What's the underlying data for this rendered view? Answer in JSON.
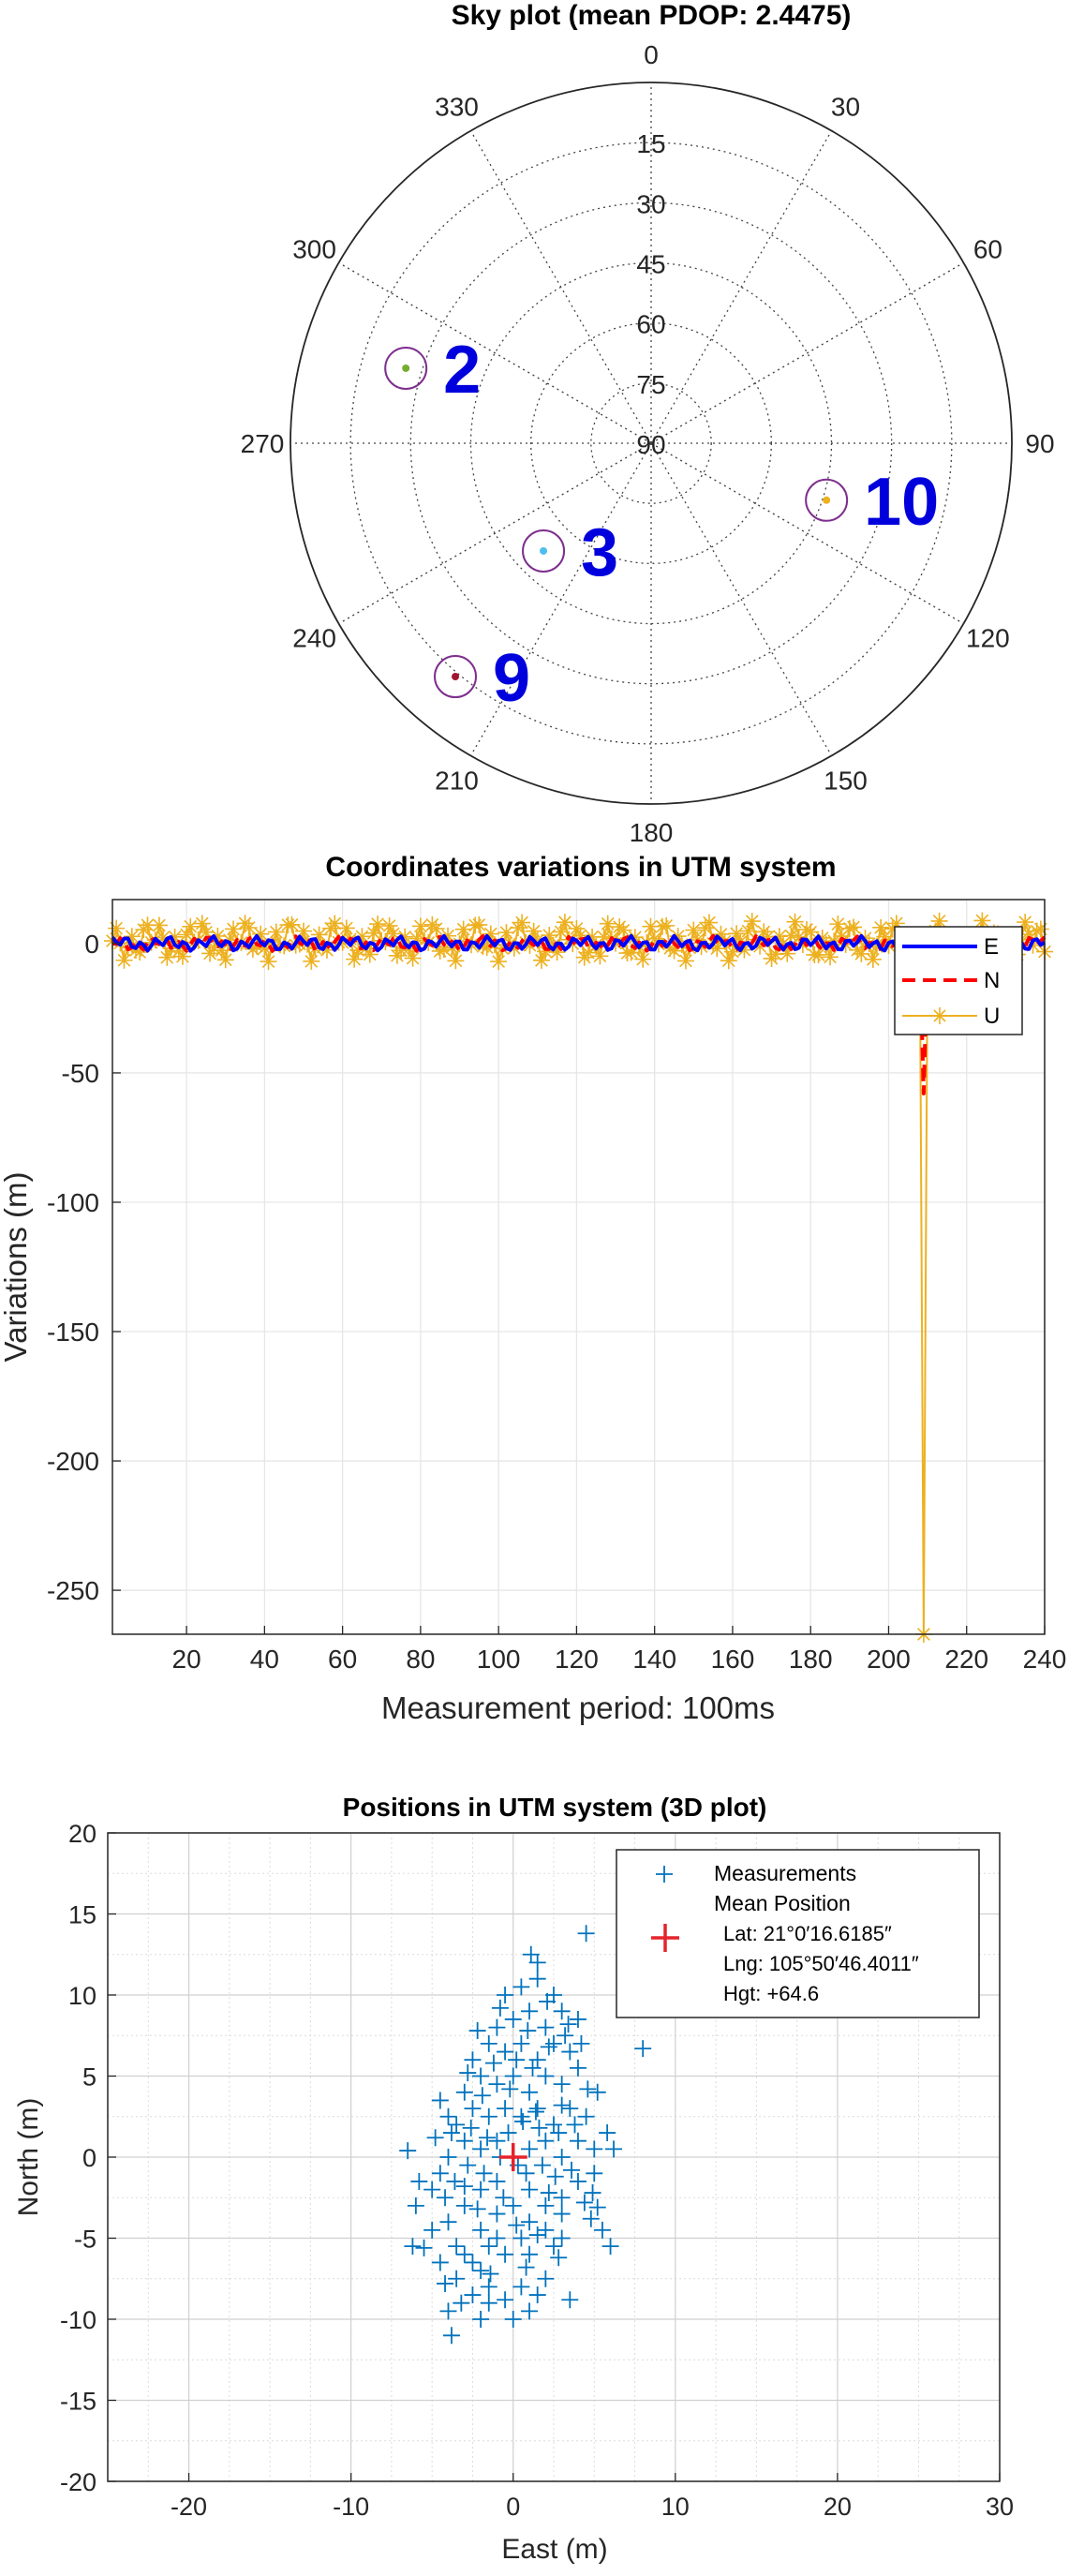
{
  "colors": {
    "E": "#0000ff",
    "N": "#ff0000",
    "U": "#edb120",
    "measurement": "#0072bd",
    "mean": "#e5232c",
    "sat_circle": "#7e2f8e",
    "sat_label": "#0000dd"
  },
  "chart_data": [
    {
      "type": "polar-scatter",
      "title": "Sky plot (mean PDOP: 2.4475)",
      "azimuth_labels": [
        "0",
        "30",
        "60",
        "90",
        "120",
        "150",
        "180",
        "210",
        "240",
        "270",
        "300",
        "330"
      ],
      "elevation_labels": [
        "15",
        "30",
        "45",
        "60",
        "75",
        "90"
      ],
      "satellites": [
        {
          "prn": "2",
          "azimuth": 287,
          "elevation": 26,
          "color": "#77ac30"
        },
        {
          "prn": "3",
          "azimuth": 225,
          "elevation": 52,
          "color": "#4dbeee"
        },
        {
          "prn": "9",
          "azimuth": 220,
          "elevation": 14,
          "color": "#a2142f"
        },
        {
          "prn": "10",
          "azimuth": 108,
          "elevation": 44,
          "color": "#edb120"
        }
      ]
    },
    {
      "type": "line",
      "title": "Coordinates variations in UTM system",
      "xlabel": "Measurement period: 100ms",
      "ylabel": "Variations (m)",
      "xlim": [
        1,
        240
      ],
      "ylim": [
        -267,
        17
      ],
      "xticks": [
        "20",
        "40",
        "60",
        "80",
        "100",
        "120",
        "140",
        "160",
        "180",
        "200",
        "220",
        "240"
      ],
      "yticks": [
        "0",
        "-50",
        "-100",
        "-150",
        "-200",
        "-250"
      ],
      "grid": true,
      "legend_position": "top-right",
      "series": [
        {
          "name": "E",
          "style": "solid",
          "amplitude": 3,
          "spike": {
            "x": 209,
            "y": -20
          }
        },
        {
          "name": "N",
          "style": "dashed",
          "amplitude": 3,
          "spike": {
            "x": 209,
            "y": -58
          }
        },
        {
          "name": "U",
          "style": "star-markers",
          "amplitude": 8,
          "spike": {
            "x": 209,
            "y": -267
          }
        }
      ]
    },
    {
      "type": "scatter",
      "title": "Positions in UTM system (3D plot)",
      "xlabel": "East (m)",
      "ylabel": "North (m)",
      "xlim": [
        -25,
        30
      ],
      "ylim": [
        -20,
        20
      ],
      "xticks": [
        "-20",
        "-10",
        "0",
        "10",
        "20",
        "30"
      ],
      "yticks": [
        "20",
        "15",
        "10",
        "5",
        "0",
        "-5",
        "-10",
        "-15",
        "-20"
      ],
      "grid": true,
      "legend_position": "top-right",
      "legend": {
        "measurements": "Measurements",
        "mean": "Mean Position",
        "lat": "Lat: 21°0′16.6185″",
        "lng": "Lng: 105°50′46.4011″",
        "hgt": "Hgt: +64.6"
      },
      "mean_position": {
        "x": 0,
        "y": 0
      },
      "measurement_points": [
        [
          4.5,
          13.8
        ],
        [
          8,
          6.7
        ],
        [
          1.5,
          12
        ],
        [
          -6.5,
          0.4
        ],
        [
          -6,
          -3
        ],
        [
          -5.5,
          -5.6
        ],
        [
          -4,
          -9.5
        ],
        [
          -3.8,
          -11
        ],
        [
          3.5,
          -8.8
        ],
        [
          5.5,
          -4.5
        ],
        [
          6,
          -5.5
        ],
        [
          0,
          -10
        ],
        [
          -1.5,
          -8
        ],
        [
          4.8,
          -3.8
        ],
        [
          -3,
          -6
        ],
        [
          -2,
          -7
        ],
        [
          -1,
          -5
        ],
        [
          1,
          -6
        ],
        [
          2,
          -7.5
        ],
        [
          3,
          -5
        ],
        [
          -4,
          -4
        ],
        [
          -3,
          -3
        ],
        [
          -2,
          -2
        ],
        [
          -1,
          -1.5
        ],
        [
          1,
          -2
        ],
        [
          2,
          -3
        ],
        [
          3,
          -2.5
        ],
        [
          4,
          -1.5
        ],
        [
          5,
          -1
        ],
        [
          -5,
          -2
        ],
        [
          -4.5,
          -1
        ],
        [
          -4,
          0
        ],
        [
          -3,
          1
        ],
        [
          -2,
          0.5
        ],
        [
          -1,
          1
        ],
        [
          1,
          0.5
        ],
        [
          2,
          1
        ],
        [
          3,
          0
        ],
        [
          4,
          1
        ],
        [
          5,
          0.5
        ],
        [
          -3.5,
          2
        ],
        [
          -2.5,
          3
        ],
        [
          -1.5,
          2.5
        ],
        [
          -0.5,
          3
        ],
        [
          0.5,
          2.5
        ],
        [
          1.5,
          3
        ],
        [
          2.5,
          2
        ],
        [
          3.5,
          3
        ],
        [
          4.5,
          2.5
        ],
        [
          -3,
          4
        ],
        [
          -2,
          5
        ],
        [
          -1,
          4.5
        ],
        [
          0,
          5
        ],
        [
          1,
          4
        ],
        [
          2,
          5
        ],
        [
          3,
          4.5
        ],
        [
          4,
          5.5
        ],
        [
          -2.5,
          6
        ],
        [
          -1.5,
          7
        ],
        [
          -0.5,
          6.5
        ],
        [
          0.5,
          7
        ],
        [
          1.5,
          6
        ],
        [
          2.5,
          7
        ],
        [
          3.5,
          6.5
        ],
        [
          -1,
          8
        ],
        [
          0,
          8.5
        ],
        [
          1,
          9
        ],
        [
          2,
          8
        ],
        [
          3,
          9
        ],
        [
          4,
          8.5
        ],
        [
          -0.5,
          10
        ],
        [
          0.5,
          10.5
        ],
        [
          1.5,
          11
        ],
        [
          2.5,
          10
        ],
        [
          -2,
          -4.5
        ],
        [
          -1,
          -3.5
        ],
        [
          0,
          -3
        ],
        [
          1,
          -4
        ],
        [
          2,
          -4.5
        ],
        [
          3,
          -3.5
        ],
        [
          -3.5,
          -7.5
        ],
        [
          -2.5,
          -8.5
        ],
        [
          -1.5,
          -9
        ],
        [
          0.5,
          -8
        ],
        [
          1.5,
          -8.5
        ],
        [
          -5,
          -4.5
        ],
        [
          -4.5,
          -6.5
        ],
        [
          -3.5,
          -5.5
        ],
        [
          -2.5,
          -6.5
        ],
        [
          -1.5,
          -5.5
        ],
        [
          -0.5,
          -6
        ],
        [
          0.5,
          -5
        ],
        [
          1.5,
          -4.8
        ],
        [
          2.5,
          -5.5
        ],
        [
          -4,
          2.5
        ],
        [
          -4.5,
          3.5
        ],
        [
          -3.8,
          1.5
        ],
        [
          -2.8,
          -0.5
        ],
        [
          -1.8,
          -1
        ],
        [
          -0.8,
          0
        ],
        [
          0.8,
          -1
        ],
        [
          1.8,
          -0.5
        ],
        [
          2.8,
          1.5
        ],
        [
          3.8,
          2
        ],
        [
          -2.2,
          7.8
        ],
        [
          -1.2,
          5.8
        ],
        [
          0.2,
          6
        ],
        [
          1.2,
          5.5
        ],
        [
          2.2,
          6.8
        ],
        [
          3.2,
          7.5
        ],
        [
          4.2,
          7
        ],
        [
          5.2,
          4
        ],
        [
          -0.3,
          1.5
        ],
        [
          0.3,
          -0.5
        ],
        [
          -0.6,
          -2.5
        ],
        [
          0.6,
          2.2
        ],
        [
          1.6,
          1.8
        ],
        [
          -1.6,
          1.2
        ],
        [
          -2.6,
          1.8
        ],
        [
          2.6,
          -1.2
        ],
        [
          3.6,
          -0.8
        ],
        [
          -3.6,
          -1.5
        ],
        [
          -4.2,
          -2.5
        ],
        [
          -2.2,
          -3.2
        ],
        [
          0.2,
          -4.2
        ],
        [
          2.2,
          -2.2
        ],
        [
          4.4,
          -2.8
        ],
        [
          -1.4,
          -7.2
        ],
        [
          0.8,
          -6.8
        ],
        [
          2.8,
          -6.2
        ],
        [
          -3.2,
          -9
        ],
        [
          1,
          -9.5
        ],
        [
          -0.2,
          4.2
        ],
        [
          1.4,
          2.8
        ],
        [
          -1.9,
          3.8
        ],
        [
          3,
          3.2
        ],
        [
          4.6,
          4.2
        ],
        [
          -2.8,
          5.2
        ],
        [
          0.9,
          7.8
        ],
        [
          2.1,
          9.6
        ],
        [
          3.4,
          8.2
        ],
        [
          -0.8,
          9.2
        ],
        [
          1.1,
          12.5
        ],
        [
          -3,
          -1.8
        ],
        [
          -5.8,
          -1.5
        ],
        [
          -4.8,
          1.2
        ],
        [
          5.8,
          1.5
        ],
        [
          6.2,
          0.5
        ],
        [
          4.9,
          -2.2
        ],
        [
          5.2,
          -3.1
        ],
        [
          -6.2,
          -5.5
        ],
        [
          -4.2,
          -7.8
        ],
        [
          -2,
          -10
        ],
        [
          -0.5,
          -8.8
        ]
      ]
    }
  ]
}
